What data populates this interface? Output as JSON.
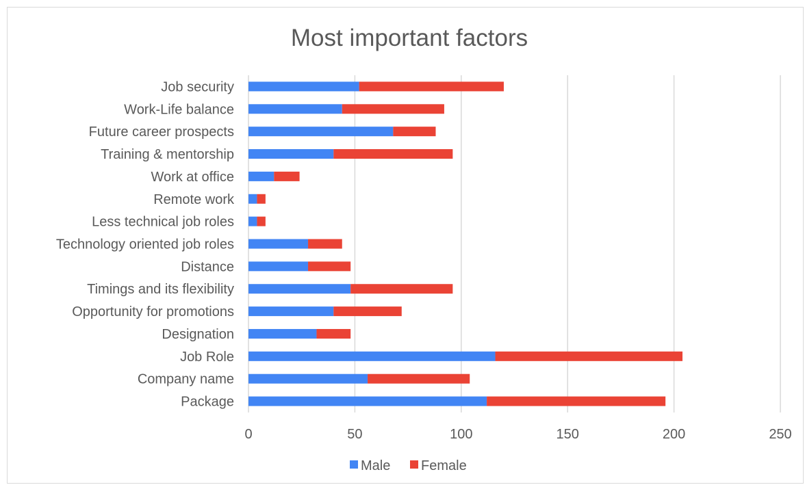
{
  "chart_data": {
    "type": "bar",
    "orientation": "horizontal",
    "stacked": true,
    "title": "Most important factors",
    "xlabel": "",
    "ylabel": "",
    "xlim": [
      0,
      250
    ],
    "ticks": [
      "0",
      "50",
      "100",
      "150",
      "200",
      "250"
    ],
    "tick_values": [
      0,
      50,
      100,
      150,
      200,
      250
    ],
    "grid": true,
    "legend_position": "bottom",
    "categories": [
      "Job security",
      "Work-Life balance",
      "Future career prospects",
      "Training & mentorship",
      "Work at office",
      "Remote work",
      "Less technical job roles",
      "Technology oriented job roles",
      "Distance",
      "Timings and its flexibility",
      "Opportunity for promotions",
      "Designation",
      "Job Role",
      "Company name",
      "Package"
    ],
    "series": [
      {
        "name": "Male",
        "color": "#4285f4",
        "values": [
          52,
          44,
          68,
          40,
          12,
          4,
          4,
          28,
          28,
          48,
          40,
          32,
          116,
          56,
          112
        ]
      },
      {
        "name": "Female",
        "color": "#ea4335",
        "values": [
          68,
          48,
          20,
          56,
          12,
          4,
          4,
          16,
          20,
          48,
          32,
          16,
          88,
          48,
          84
        ]
      }
    ]
  }
}
